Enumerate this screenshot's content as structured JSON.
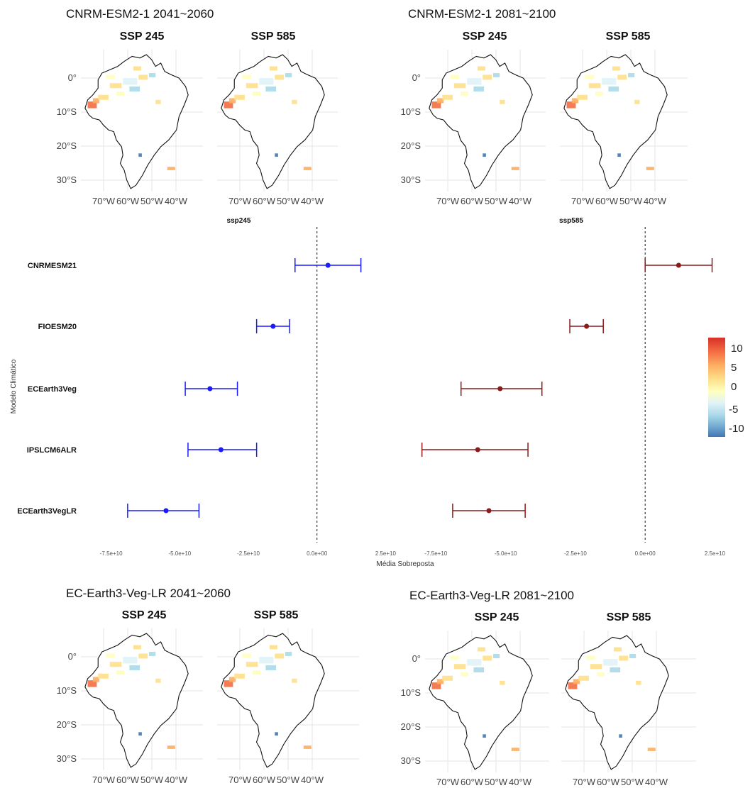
{
  "groups": [
    {
      "title": "CNRM-ESM2-1 2041~2060",
      "panels": [
        "SSP 245",
        "SSP 585"
      ]
    },
    {
      "title": "CNRM-ESM2-1 2081~2100",
      "panels": [
        "SSP 245",
        "SSP 585"
      ]
    },
    {
      "title": "EC-Earth3-Veg-LR 2041~2060",
      "panels": [
        "SSP 245",
        "SSP 585"
      ]
    },
    {
      "title": "EC-Earth3-Veg-LR 2081~2100",
      "panels": [
        "SSP 245",
        "SSP 585"
      ]
    }
  ],
  "map_axes": {
    "lat_labels": [
      "0°",
      "10°S",
      "20°S",
      "30°S"
    ],
    "lon_labels": [
      "70°W",
      "60°W",
      "50°W",
      "40°W"
    ]
  },
  "colors": {
    "ssp245": "#1a1aff",
    "ssp585": "#8b1a1a",
    "scale": [
      "#d73027",
      "#f46d43",
      "#fdae61",
      "#fee08b",
      "#ffffbf",
      "#e0f3f8",
      "#abd9e9",
      "#74add1",
      "#4575b4"
    ]
  },
  "legend": {
    "labels": [
      "10",
      "5",
      "0",
      "-5",
      "-10"
    ]
  },
  "chart_data": {
    "type": "scatter",
    "subtype": "forest-plot",
    "ylabel": "Modelo Climático",
    "xlabel": "Média Sobreposta",
    "categories": [
      "CNRMESM21",
      "FIOESM20",
      "ECEarth3Veg",
      "IPSLCM6ALR",
      "ECEarth3VegLR"
    ],
    "facets": [
      {
        "name": "ssp245",
        "xlim": [
          -85000000000.0,
          28000000000.0
        ],
        "ticks": [
          -75000000000.0,
          -50000000000.0,
          -25000000000.0,
          0,
          25000000000.0
        ],
        "tick_labels": [
          "-7.5e+10",
          "-5.0e+10",
          "-2.5e+10",
          "0.0e+00",
          "2.5e+10"
        ],
        "points": [
          {
            "model": "CNRMESM21",
            "mean": 4000000000.0,
            "low": -8000000000.0,
            "high": 16000000000.0
          },
          {
            "model": "FIOESM20",
            "mean": -16000000000.0,
            "low": -22000000000.0,
            "high": -10000000000.0
          },
          {
            "model": "ECEarth3Veg",
            "mean": -39000000000.0,
            "low": -48000000000.0,
            "high": -29000000000.0
          },
          {
            "model": "IPSLCM6ALR",
            "mean": -35000000000.0,
            "low": -47000000000.0,
            "high": -22000000000.0
          },
          {
            "model": "ECEarth3VegLR",
            "mean": -55000000000.0,
            "low": -69000000000.0,
            "high": -43000000000.0
          }
        ]
      },
      {
        "name": "ssp585",
        "xlim": [
          -85000000000.0,
          32000000000.0
        ],
        "ticks": [
          -75000000000.0,
          -50000000000.0,
          -25000000000.0,
          0,
          25000000000.0
        ],
        "tick_labels": [
          "-7.5e+10",
          "-5.0e+10",
          "-2.5e+10",
          "0.0e+00",
          "2.5e+10"
        ],
        "points": [
          {
            "model": "CNRMESM21",
            "mean": 12000000000.0,
            "low": 0.0,
            "high": 24000000000.0
          },
          {
            "model": "FIOESM20",
            "mean": -21000000000.0,
            "low": -27000000000.0,
            "high": -15000000000.0
          },
          {
            "model": "ECEarth3Veg",
            "mean": -52000000000.0,
            "low": -66000000000.0,
            "high": -37000000000.0
          },
          {
            "model": "IPSLCM6ALR",
            "mean": -60000000000.0,
            "low": -80000000000.0,
            "high": -42000000000.0
          },
          {
            "model": "ECEarth3VegLR",
            "mean": -56000000000.0,
            "low": -69000000000.0,
            "high": -43000000000.0
          }
        ]
      }
    ]
  }
}
